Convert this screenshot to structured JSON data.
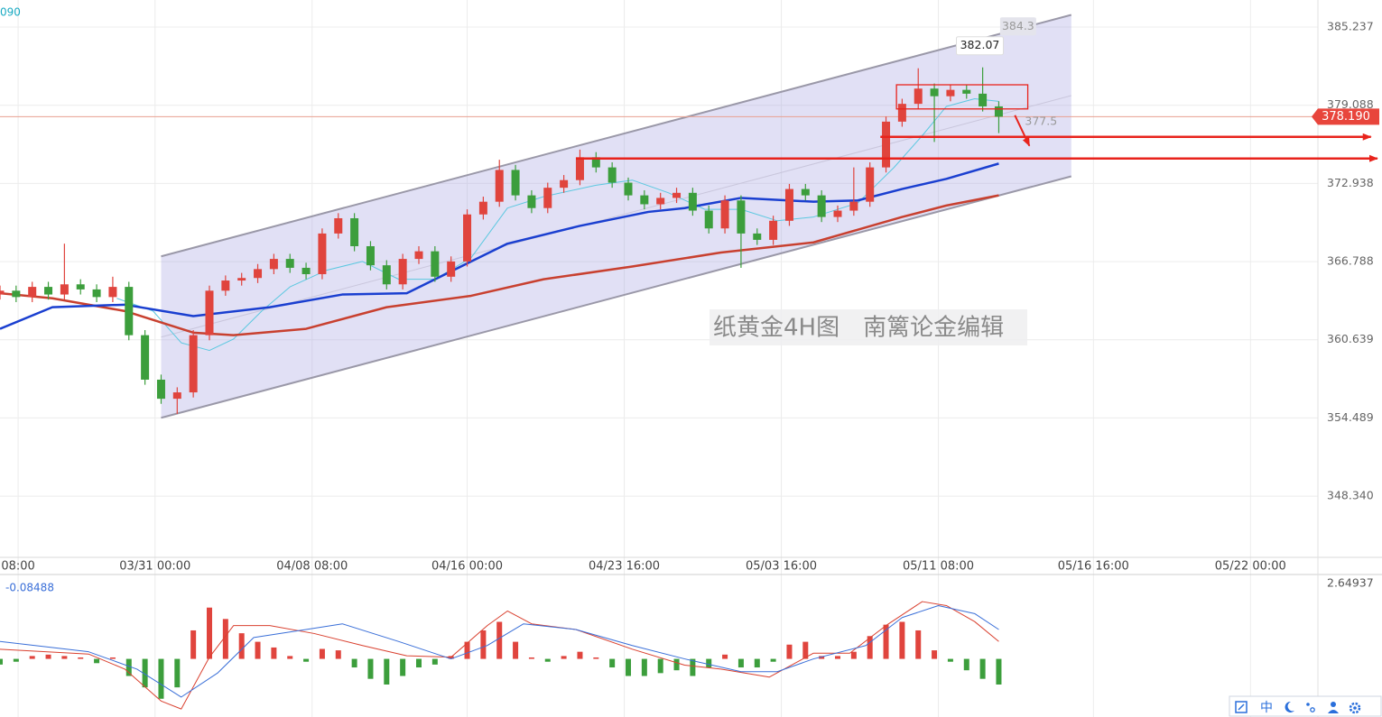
{
  "chart_data": [
    {
      "type": "candlestick",
      "legend_text": "090",
      "watermark": "纸黄金4H图　南篱论金编辑",
      "up_color": "#e0443d",
      "down_color": "#3c9e3c",
      "xlim": [
        0,
        325
      ],
      "xticks": [
        {
          "value": 4.5,
          "label": "08:00"
        },
        {
          "value": 38.5,
          "label": "03/31 00:00"
        },
        {
          "value": 77.5,
          "label": "04/08 08:00"
        },
        {
          "value": 116,
          "label": "04/16 00:00"
        },
        {
          "value": 155,
          "label": "04/23 16:00"
        },
        {
          "value": 194,
          "label": "05/03 16:00"
        },
        {
          "value": 233,
          "label": "05/11 08:00"
        },
        {
          "value": 271.5,
          "label": "05/16 16:00"
        },
        {
          "value": 310.5,
          "label": "05/22 00:00"
        }
      ],
      "ylim": [
        343.52,
        387.37
      ],
      "yticks": [
        385.237,
        379.088,
        372.938,
        366.788,
        360.639,
        354.489,
        {
          "value": 348.34,
          "label": "348.340"
        }
      ],
      "grid": true,
      "x": [
        0,
        4,
        8,
        12,
        16,
        20,
        24,
        28,
        32,
        36,
        40,
        44,
        48,
        52,
        56,
        60,
        64,
        68,
        72,
        76,
        80,
        84,
        88,
        92,
        96,
        100,
        104,
        108,
        112,
        116,
        120,
        124,
        128,
        132,
        136,
        140,
        144,
        148,
        152,
        156,
        160,
        164,
        168,
        172,
        176,
        180,
        184,
        188,
        192,
        196,
        200,
        204,
        208,
        212,
        216,
        220,
        224,
        228,
        232,
        236,
        240,
        244,
        248
      ],
      "open": [
        364.2,
        364.5,
        364.0,
        364.8,
        364.2,
        365.0,
        364.6,
        364.0,
        364.8,
        361.0,
        357.5,
        356.0,
        356.5,
        361.0,
        364.5,
        365.3,
        365.5,
        366.2,
        367.0,
        366.3,
        365.8,
        369.0,
        370.2,
        368.0,
        366.5,
        365.0,
        367.0,
        367.6,
        365.6,
        366.8,
        370.5,
        371.5,
        374.0,
        372.0,
        371.0,
        372.6,
        373.2,
        375.0,
        374.2,
        373.0,
        372.0,
        371.3,
        371.8,
        372.2,
        370.8,
        369.4,
        371.6,
        369.0,
        368.5,
        370.0,
        372.5,
        372.0,
        370.3,
        370.8,
        371.5,
        374.2,
        377.8,
        379.2,
        380.4,
        379.8,
        380.3,
        380.0,
        379.0
      ],
      "high": [
        364.9,
        364.9,
        365.2,
        365.2,
        368.2,
        365.4,
        365.0,
        365.6,
        365.2,
        361.4,
        357.9,
        356.9,
        361.4,
        364.9,
        365.7,
        365.9,
        366.6,
        367.4,
        367.4,
        366.7,
        369.4,
        370.6,
        370.6,
        368.4,
        366.9,
        367.4,
        368.0,
        368.0,
        367.2,
        370.9,
        371.9,
        374.8,
        374.4,
        372.4,
        373.0,
        373.6,
        375.6,
        375.4,
        374.6,
        373.4,
        372.4,
        372.2,
        372.6,
        372.6,
        371.2,
        372.0,
        372.0,
        369.4,
        370.4,
        372.9,
        372.9,
        372.4,
        371.2,
        374.2,
        374.6,
        378.2,
        379.6,
        382.0,
        380.8,
        380.7,
        380.7,
        382.07,
        379.4
      ],
      "low": [
        363.8,
        363.6,
        363.6,
        363.8,
        363.8,
        364.2,
        363.6,
        363.6,
        360.6,
        357.1,
        355.6,
        354.8,
        356.1,
        360.6,
        364.1,
        364.9,
        365.1,
        365.8,
        365.9,
        365.4,
        365.4,
        368.6,
        367.6,
        366.1,
        364.6,
        364.6,
        366.6,
        365.2,
        365.2,
        366.4,
        370.1,
        371.1,
        371.6,
        370.6,
        370.6,
        372.2,
        372.8,
        373.8,
        372.6,
        371.6,
        370.9,
        370.9,
        371.4,
        370.4,
        369.0,
        369.0,
        366.3,
        368.1,
        368.1,
        369.6,
        371.6,
        369.9,
        369.9,
        370.4,
        371.1,
        373.8,
        377.4,
        378.8,
        376.2,
        379.4,
        379.6,
        378.6,
        376.9
      ],
      "close": [
        364.5,
        364.0,
        364.8,
        364.2,
        365.0,
        364.6,
        364.0,
        364.8,
        361.0,
        357.5,
        356.0,
        356.5,
        361.0,
        364.5,
        365.3,
        365.5,
        366.2,
        367.0,
        366.3,
        365.8,
        369.0,
        370.2,
        368.0,
        366.5,
        365.0,
        367.0,
        367.6,
        365.6,
        366.8,
        370.5,
        371.5,
        374.0,
        372.0,
        371.0,
        372.6,
        373.2,
        375.0,
        374.2,
        373.0,
        372.0,
        371.3,
        371.8,
        372.2,
        370.8,
        369.4,
        371.6,
        369.0,
        368.5,
        370.0,
        372.5,
        372.0,
        370.3,
        370.8,
        371.5,
        374.2,
        377.8,
        379.2,
        380.4,
        379.8,
        380.3,
        380.0,
        379.0,
        378.19
      ],
      "series": [
        {
          "color": "#5bc8e0",
          "width": 1,
          "x": [
            29,
            38,
            45,
            52,
            58,
            65,
            72,
            81,
            90,
            99,
            108,
            117,
            126,
            135,
            148,
            157,
            166,
            175,
            184,
            193,
            202,
            213,
            222,
            229,
            235,
            242,
            248
          ],
          "values": [
            363.9,
            362.9,
            360.4,
            359.8,
            360.7,
            362.9,
            364.8,
            366.1,
            366.8,
            365.4,
            365.4,
            367.1,
            371.0,
            371.9,
            372.8,
            373.2,
            372.2,
            370.9,
            370.9,
            370.0,
            370.3,
            371.4,
            374.2,
            376.7,
            379.0,
            379.6,
            379.4
          ]
        },
        {
          "color": "#c8402f",
          "width": 2.5,
          "x": [
            0,
            13,
            31,
            48,
            58,
            76,
            96,
            117,
            135,
            157,
            179,
            202,
            213,
            224,
            235,
            248
          ],
          "values": [
            364.3,
            363.9,
            362.9,
            361.2,
            361.0,
            361.5,
            363.2,
            364.1,
            365.4,
            366.4,
            367.5,
            368.3,
            369.3,
            370.3,
            371.2,
            372.0
          ]
        },
        {
          "color": "#1a3fd0",
          "width": 2.5,
          "x": [
            0,
            13,
            31,
            48,
            67,
            85,
            101,
            117,
            126,
            144,
            161,
            170,
            184,
            202,
            213,
            224,
            235,
            248
          ],
          "values": [
            361.5,
            363.2,
            363.4,
            362.5,
            363.2,
            364.2,
            364.3,
            366.8,
            368.2,
            369.6,
            370.7,
            371.0,
            371.8,
            371.5,
            371.6,
            372.5,
            373.3,
            374.5
          ]
        }
      ],
      "channel": {
        "x": [
          40,
          266
        ],
        "upper": [
          367.2,
          386.2
        ],
        "lower": [
          354.5,
          373.5
        ]
      },
      "last_price": {
        "value": 378.19,
        "label": "378.190"
      },
      "annotations": [
        {
          "x": 252.8,
          "y": 384.3
        },
        {
          "x": 243.3,
          "y": 382.07
        },
        {
          "x": 258.5,
          "y": 377.5
        }
      ],
      "box": {
        "x": [
          222.6,
          255.2
        ],
        "y": [
          378.8,
          380.7
        ]
      },
      "rays": [
        {
          "x": [
            218.6,
            340.4
          ],
          "y": [
            376.6,
            376.6
          ]
        },
        {
          "x": [
            143,
            342
          ],
          "y": [
            374.9,
            374.9
          ]
        }
      ],
      "arrow": {
        "x": [
          252,
          255.6
        ],
        "y": [
          378.3,
          375.9
        ]
      }
    },
    {
      "type": "bar",
      "current_value": -0.08488,
      "xlim": [
        0,
        325
      ],
      "ylim": [
        -2.04,
        2.93
      ],
      "yticks": [
        2.64937
      ],
      "x": [
        0,
        4,
        8,
        12,
        16,
        20,
        24,
        28,
        32,
        36,
        40,
        44,
        48,
        52,
        56,
        60,
        64,
        68,
        72,
        76,
        80,
        84,
        88,
        92,
        96,
        100,
        104,
        108,
        112,
        116,
        120,
        124,
        128,
        132,
        136,
        140,
        144,
        148,
        152,
        156,
        160,
        164,
        168,
        172,
        176,
        180,
        184,
        188,
        192,
        196,
        200,
        204,
        208,
        212,
        216,
        220,
        224,
        228,
        232,
        236,
        240,
        244,
        248
      ],
      "values": [
        -0.2,
        -0.1,
        0.1,
        0.15,
        0.1,
        0.05,
        -0.15,
        0.05,
        -0.6,
        -1.0,
        -1.4,
        -1.0,
        1.0,
        1.8,
        1.4,
        0.9,
        0.6,
        0.4,
        0.1,
        -0.1,
        0.35,
        0.3,
        -0.3,
        -0.7,
        -0.9,
        -0.6,
        -0.3,
        -0.2,
        0.1,
        0.6,
        1.0,
        1.3,
        0.6,
        0.05,
        -0.1,
        0.1,
        0.25,
        0.05,
        -0.3,
        -0.6,
        -0.6,
        -0.5,
        -0.4,
        -0.6,
        -0.3,
        0.15,
        -0.3,
        -0.3,
        -0.1,
        0.5,
        0.6,
        0.1,
        0.1,
        0.25,
        0.8,
        1.2,
        1.3,
        1.0,
        0.3,
        -0.1,
        -0.4,
        -0.7,
        -0.9
      ],
      "up_color": "#e0443d",
      "down_color": "#3c9e3c",
      "series": [
        {
          "color": "#d9402f",
          "width": 1,
          "x": [
            0,
            22,
            31,
            40,
            45,
            52,
            58,
            67,
            78,
            90,
            101,
            112,
            121,
            126,
            132,
            143,
            157,
            170,
            179,
            191,
            202,
            211,
            220,
            229,
            235,
            242,
            248
          ],
          "values": [
            0.34,
            0.17,
            -0.36,
            -1.48,
            -1.76,
            0.06,
            1.17,
            1.17,
            0.89,
            0.47,
            0.11,
            0.06,
            1.17,
            1.68,
            1.23,
            1.03,
            0.34,
            -0.22,
            -0.36,
            -0.64,
            0.2,
            0.2,
            1.17,
            2.01,
            1.87,
            1.31,
            0.61
          ]
        },
        {
          "color": "#3a6fd8",
          "width": 1,
          "x": [
            0,
            22,
            34,
            45,
            54,
            63,
            76,
            85,
            99,
            112,
            121,
            130,
            143,
            157,
            170,
            184,
            193,
            202,
            215,
            224,
            233,
            242,
            248
          ],
          "values": [
            0.61,
            0.25,
            -0.36,
            -1.34,
            -0.5,
            0.75,
            1.03,
            1.23,
            0.61,
            0,
            0.47,
            1.23,
            1.03,
            0.47,
            0,
            -0.45,
            -0.45,
            0,
            0.47,
            1.45,
            1.87,
            1.59,
            1.03
          ]
        }
      ]
    }
  ],
  "toolbar": {
    "language": "中"
  }
}
